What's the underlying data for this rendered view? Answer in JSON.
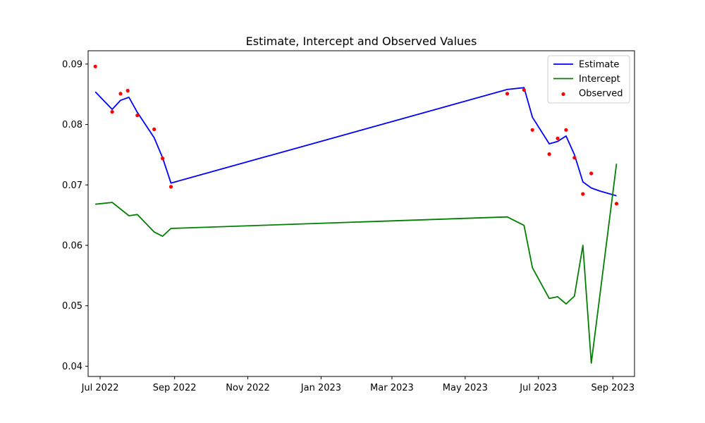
{
  "chart_data": {
    "type": "line",
    "title": "Estimate, Intercept and  Observed Values",
    "xlabel": "",
    "ylabel": "",
    "x_ticks": [
      "Jul 2022",
      "Sep 2022",
      "Nov 2022",
      "Jan 2023",
      "Mar 2023",
      "May 2023",
      "Jul 2023",
      "Sep 2023"
    ],
    "x_tick_dates": [
      "2022-07-01",
      "2022-09-01",
      "2022-11-01",
      "2023-01-01",
      "2023-03-01",
      "2023-05-01",
      "2023-07-01",
      "2023-09-01"
    ],
    "y_ticks": [
      "0.04",
      "0.05",
      "0.06",
      "0.07",
      "0.08",
      "0.09"
    ],
    "y_tick_values": [
      0.04,
      0.05,
      0.06,
      0.07,
      0.08,
      0.09
    ],
    "xlim": [
      "2022-06-21",
      "2023-09-19"
    ],
    "ylim": [
      0.0383,
      0.0922
    ],
    "grid": false,
    "legend_position": "top-right",
    "series": [
      {
        "name": "Estimate",
        "type": "line",
        "color": "#0000ff",
        "x": [
          "2022-06-27",
          "2022-07-11",
          "2022-07-18",
          "2022-07-25",
          "2022-08-01",
          "2022-08-15",
          "2022-08-22",
          "2022-08-29",
          "2023-06-05",
          "2023-06-19",
          "2023-06-26",
          "2023-07-10",
          "2023-07-17",
          "2023-07-24",
          "2023-07-31",
          "2023-08-07",
          "2023-08-14",
          "2023-08-21",
          "2023-09-04"
        ],
        "y": [
          0.0854,
          0.0825,
          0.084,
          0.0845,
          0.082,
          0.0778,
          0.0745,
          0.0703,
          0.0858,
          0.0861,
          0.0812,
          0.0768,
          0.0772,
          0.0781,
          0.075,
          0.0705,
          0.0695,
          0.069,
          0.0682
        ]
      },
      {
        "name": "Intercept",
        "type": "line",
        "color": "#008000",
        "x": [
          "2022-06-27",
          "2022-07-11",
          "2022-07-25",
          "2022-08-01",
          "2022-08-15",
          "2022-08-22",
          "2022-08-29",
          "2023-06-05",
          "2023-06-19",
          "2023-06-26",
          "2023-07-10",
          "2023-07-17",
          "2023-07-24",
          "2023-07-31",
          "2023-08-07",
          "2023-08-14",
          "2023-09-04"
        ],
        "y": [
          0.0668,
          0.0671,
          0.0649,
          0.0651,
          0.0622,
          0.0615,
          0.0628,
          0.0647,
          0.0633,
          0.0563,
          0.0512,
          0.0515,
          0.0503,
          0.0516,
          0.06,
          0.0405,
          0.0735
        ]
      },
      {
        "name": "Observed",
        "type": "scatter",
        "color": "#ff0000",
        "x": [
          "2022-06-27",
          "2022-07-11",
          "2022-07-18",
          "2022-07-24",
          "2022-08-01",
          "2022-08-15",
          "2022-08-22",
          "2022-08-29",
          "2023-06-05",
          "2023-06-19",
          "2023-06-26",
          "2023-07-10",
          "2023-07-17",
          "2023-07-24",
          "2023-07-31",
          "2023-08-07",
          "2023-08-14",
          "2023-09-04"
        ],
        "y": [
          0.0896,
          0.0821,
          0.0851,
          0.0856,
          0.0815,
          0.0792,
          0.0744,
          0.0697,
          0.0851,
          0.0857,
          0.0791,
          0.0751,
          0.0777,
          0.0791,
          0.0745,
          0.0685,
          0.0719,
          0.0669
        ]
      }
    ]
  }
}
